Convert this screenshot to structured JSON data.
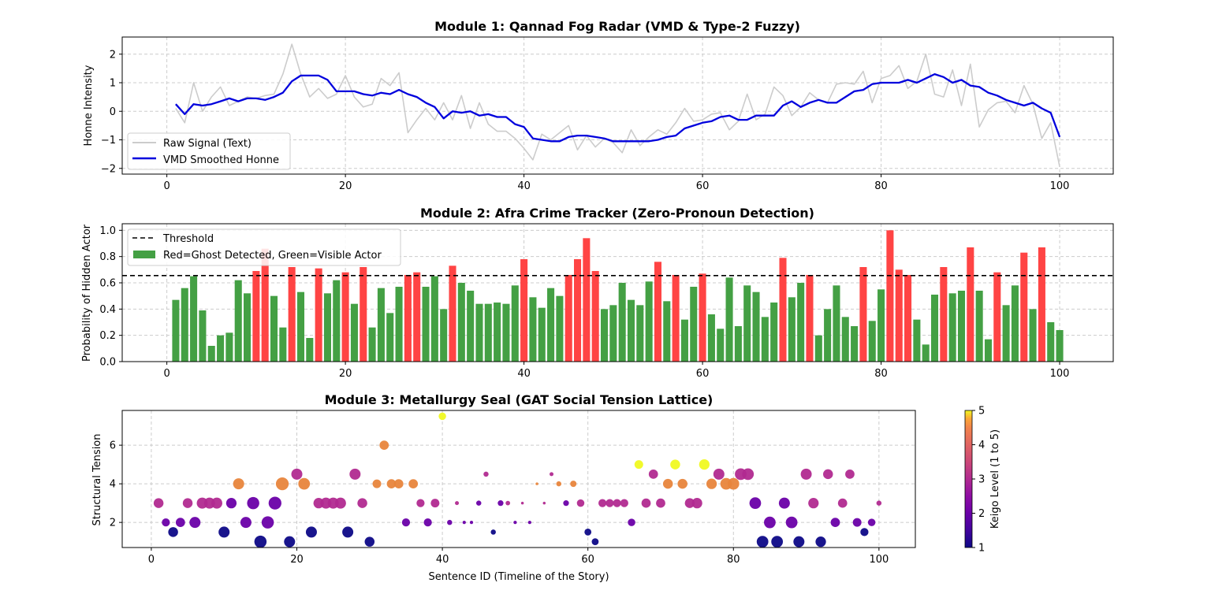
{
  "chart_data": [
    {
      "type": "line",
      "title": "Module 1: Qannad Fog Radar (VMD & Type-2 Fuzzy)",
      "xlabel": "",
      "ylabel": "Honne Intensity",
      "xlim": [
        -5,
        106
      ],
      "ylim": [
        -2.2,
        2.6
      ],
      "xticks": [
        0,
        20,
        40,
        60,
        80,
        100
      ],
      "yticks": [
        -2,
        -1,
        0,
        1,
        2
      ],
      "ytick_labels": [
        "−2",
        "−1",
        "0",
        "1",
        "2"
      ],
      "grid": true,
      "legend_position": "lower-left",
      "series": [
        {
          "name": "Raw Signal (Text)",
          "color": "#cccccc",
          "x": [
            1,
            2,
            3,
            4,
            5,
            6,
            7,
            8,
            9,
            10,
            11,
            12,
            13,
            14,
            15,
            16,
            17,
            18,
            19,
            20,
            21,
            22,
            23,
            24,
            25,
            26,
            27,
            28,
            29,
            30,
            31,
            32,
            33,
            34,
            35,
            36,
            37,
            38,
            39,
            40,
            41,
            42,
            43,
            44,
            45,
            46,
            47,
            48,
            49,
            50,
            51,
            52,
            53,
            54,
            55,
            56,
            57,
            58,
            59,
            60,
            61,
            62,
            63,
            64,
            65,
            66,
            67,
            68,
            69,
            70,
            71,
            72,
            73,
            74,
            75,
            76,
            77,
            78,
            79,
            80,
            81,
            82,
            83,
            84,
            85,
            86,
            87,
            88,
            89,
            90,
            91,
            92,
            93,
            94,
            95,
            96,
            97,
            98,
            99,
            100
          ],
          "y": [
            0.1,
            -0.4,
            1.0,
            0.0,
            0.5,
            0.85,
            0.2,
            0.35,
            0.5,
            0.45,
            0.55,
            0.6,
            1.3,
            2.35,
            1.3,
            0.5,
            0.8,
            0.45,
            0.6,
            1.25,
            0.5,
            0.15,
            0.25,
            1.15,
            0.9,
            1.35,
            -0.75,
            -0.3,
            0.1,
            -0.3,
            0.3,
            -0.3,
            0.55,
            -0.6,
            0.3,
            -0.45,
            -0.7,
            -0.7,
            -0.95,
            -1.3,
            -1.7,
            -0.8,
            -1.0,
            -0.75,
            -0.5,
            -1.35,
            -0.85,
            -1.25,
            -0.95,
            -1.1,
            -1.45,
            -0.65,
            -1.2,
            -0.9,
            -0.65,
            -0.8,
            -0.4,
            0.1,
            -0.35,
            -0.3,
            -0.1,
            -0.05,
            -0.65,
            -0.35,
            0.6,
            -0.3,
            -0.1,
            0.85,
            0.55,
            -0.15,
            0.15,
            0.65,
            0.4,
            0.3,
            0.95,
            1.0,
            0.95,
            1.4,
            0.3,
            1.15,
            1.25,
            1.6,
            0.8,
            1.05,
            2.0,
            0.6,
            0.5,
            1.45,
            0.2,
            1.65,
            -0.55,
            0.05,
            0.3,
            0.35,
            -0.05,
            0.9,
            0.25,
            -0.95,
            -0.4,
            -1.95
          ]
        },
        {
          "name": "VMD Smoothed Honne",
          "color": "#0000dd",
          "x": [
            1,
            2,
            3,
            4,
            5,
            6,
            7,
            8,
            9,
            10,
            11,
            12,
            13,
            14,
            15,
            16,
            17,
            18,
            19,
            20,
            21,
            22,
            23,
            24,
            25,
            26,
            27,
            28,
            29,
            30,
            31,
            32,
            33,
            34,
            35,
            36,
            37,
            38,
            39,
            40,
            41,
            42,
            43,
            44,
            45,
            46,
            47,
            48,
            49,
            50,
            51,
            52,
            53,
            54,
            55,
            56,
            57,
            58,
            59,
            60,
            61,
            62,
            63,
            64,
            65,
            66,
            67,
            68,
            69,
            70,
            71,
            72,
            73,
            74,
            75,
            76,
            77,
            78,
            79,
            80,
            81,
            82,
            83,
            84,
            85,
            86,
            87,
            88,
            89,
            90,
            91,
            92,
            93,
            94,
            95,
            96,
            97,
            98,
            99,
            100
          ],
          "y": [
            0.25,
            -0.1,
            0.25,
            0.2,
            0.25,
            0.35,
            0.45,
            0.35,
            0.45,
            0.45,
            0.4,
            0.5,
            0.65,
            1.05,
            1.25,
            1.25,
            1.25,
            1.1,
            0.7,
            0.7,
            0.7,
            0.6,
            0.55,
            0.65,
            0.6,
            0.75,
            0.6,
            0.5,
            0.3,
            0.15,
            -0.25,
            0.0,
            -0.05,
            0.0,
            -0.15,
            -0.1,
            -0.2,
            -0.2,
            -0.45,
            -0.55,
            -0.95,
            -1.0,
            -1.05,
            -1.05,
            -0.9,
            -0.85,
            -0.85,
            -0.9,
            -0.95,
            -1.05,
            -1.05,
            -1.05,
            -1.05,
            -1.05,
            -1.0,
            -0.9,
            -0.85,
            -0.6,
            -0.5,
            -0.4,
            -0.35,
            -0.2,
            -0.15,
            -0.3,
            -0.3,
            -0.15,
            -0.15,
            -0.15,
            0.2,
            0.35,
            0.15,
            0.3,
            0.4,
            0.3,
            0.3,
            0.5,
            0.7,
            0.75,
            0.95,
            1.0,
            1.0,
            1.0,
            1.1,
            1.0,
            1.15,
            1.3,
            1.2,
            1.0,
            1.1,
            0.9,
            0.85,
            0.65,
            0.55,
            0.4,
            0.3,
            0.2,
            0.3,
            0.1,
            -0.05,
            -0.9
          ]
        }
      ]
    },
    {
      "type": "bar",
      "title": "Module 2: Afra Crime Tracker (Zero-Pronoun Detection)",
      "xlabel": "",
      "ylabel": "Probability of Hidden Actor",
      "xlim": [
        -5,
        106
      ],
      "ylim": [
        0,
        1.05
      ],
      "xticks": [
        0,
        20,
        40,
        60,
        80,
        100
      ],
      "yticks": [
        0,
        0.2,
        0.4,
        0.6,
        0.8,
        1.0
      ],
      "ytick_labels": [
        "0.0",
        "0.2",
        "0.4",
        "0.6",
        "0.8",
        "1.0"
      ],
      "grid": true,
      "legend_position": "top-left",
      "threshold": {
        "label": "Threshold",
        "value": 0.655
      },
      "bar_legend_label": "Red=Ghost Detected, Green=Visible Actor",
      "color_above": "#ff4444",
      "color_below": "#44a044",
      "x": [
        1,
        2,
        3,
        4,
        5,
        6,
        7,
        8,
        9,
        10,
        11,
        12,
        13,
        14,
        15,
        16,
        17,
        18,
        19,
        20,
        21,
        22,
        23,
        24,
        25,
        26,
        27,
        28,
        29,
        30,
        31,
        32,
        33,
        34,
        35,
        36,
        37,
        38,
        39,
        40,
        41,
        42,
        43,
        44,
        45,
        46,
        47,
        48,
        49,
        50,
        51,
        52,
        53,
        54,
        55,
        56,
        57,
        58,
        59,
        60,
        61,
        62,
        63,
        64,
        65,
        66,
        67,
        68,
        69,
        70,
        71,
        72,
        73,
        74,
        75,
        76,
        77,
        78,
        79,
        80,
        81,
        82,
        83,
        84,
        85,
        86,
        87,
        88,
        89,
        90,
        91,
        92,
        93,
        94,
        95,
        96,
        97,
        98,
        99,
        100
      ],
      "values": [
        0.47,
        0.56,
        0.65,
        0.39,
        0.12,
        0.2,
        0.22,
        0.62,
        0.52,
        0.69,
        0.86,
        0.5,
        0.26,
        0.72,
        0.53,
        0.18,
        0.71,
        0.52,
        0.62,
        0.68,
        0.44,
        0.72,
        0.26,
        0.56,
        0.37,
        0.57,
        0.66,
        0.68,
        0.57,
        0.65,
        0.4,
        0.73,
        0.6,
        0.54,
        0.44,
        0.44,
        0.45,
        0.44,
        0.58,
        0.78,
        0.49,
        0.41,
        0.56,
        0.5,
        0.66,
        0.78,
        0.94,
        0.69,
        0.4,
        0.43,
        0.6,
        0.47,
        0.43,
        0.61,
        0.76,
        0.46,
        0.66,
        0.32,
        0.57,
        0.67,
        0.36,
        0.25,
        0.64,
        0.27,
        0.58,
        0.53,
        0.34,
        0.45,
        0.79,
        0.49,
        0.6,
        0.66,
        0.2,
        0.4,
        0.58,
        0.34,
        0.27,
        0.72,
        0.31,
        0.55,
        1.0,
        0.7,
        0.66,
        0.32,
        0.13,
        0.51,
        0.72,
        0.52,
        0.54,
        0.87,
        0.54,
        0.17,
        0.68,
        0.43,
        0.58,
        0.83,
        0.4,
        0.87,
        0.3,
        0.24
      ]
    },
    {
      "type": "scatter",
      "title": "Module 3: Metallurgy Seal (GAT Social Tension Lattice)",
      "xlabel": "Sentence ID (Timeline of the Story)",
      "ylabel": "Structural Tension",
      "xlim": [
        -4,
        105
      ],
      "ylim": [
        0.7,
        7.8
      ],
      "xticks": [
        0,
        20,
        40,
        60,
        80,
        100
      ],
      "yticks": [
        2,
        4,
        6
      ],
      "grid": true,
      "colorbar": {
        "label": "Keigo Level (1 to 5)",
        "min": 1,
        "max": 5,
        "ticks": [
          1,
          2,
          3,
          4,
          5
        ]
      },
      "points": [
        [
          1,
          3,
          3,
          0.7
        ],
        [
          2,
          2,
          2,
          0.55
        ],
        [
          3,
          1.5,
          1,
          0.7
        ],
        [
          4,
          2,
          2,
          0.65
        ],
        [
          5,
          3,
          3,
          0.7
        ],
        [
          6,
          2,
          2,
          0.8
        ],
        [
          7,
          3,
          3,
          0.8
        ],
        [
          8,
          3,
          3,
          0.8
        ],
        [
          9,
          3,
          3,
          0.8
        ],
        [
          10,
          1.5,
          1,
          0.8
        ],
        [
          11,
          3,
          2,
          0.75
        ],
        [
          12,
          4,
          4,
          0.8
        ],
        [
          13,
          2,
          2,
          0.8
        ],
        [
          14,
          3,
          2,
          0.9
        ],
        [
          15,
          1,
          1,
          0.9
        ],
        [
          16,
          2,
          2,
          0.9
        ],
        [
          17,
          3,
          2,
          0.95
        ],
        [
          18,
          4,
          4,
          0.95
        ],
        [
          19,
          1,
          1,
          0.8
        ],
        [
          20,
          4.5,
          3,
          0.8
        ],
        [
          21,
          4,
          4,
          0.85
        ],
        [
          22,
          1.5,
          1,
          0.8
        ],
        [
          23,
          3,
          3,
          0.75
        ],
        [
          24,
          3,
          3,
          0.8
        ],
        [
          25,
          3,
          3,
          0.8
        ],
        [
          26,
          3,
          3,
          0.8
        ],
        [
          27,
          1.5,
          1,
          0.8
        ],
        [
          28,
          4.5,
          3,
          0.8
        ],
        [
          29,
          3,
          3,
          0.7
        ],
        [
          30,
          1,
          1,
          0.7
        ],
        [
          31,
          4,
          4,
          0.6
        ],
        [
          32,
          6,
          4,
          0.65
        ],
        [
          33,
          4,
          4,
          0.65
        ],
        [
          34,
          4,
          4,
          0.65
        ],
        [
          35,
          2,
          2,
          0.55
        ],
        [
          36,
          4,
          4,
          0.65
        ],
        [
          37,
          3,
          3,
          0.55
        ],
        [
          38,
          2,
          2,
          0.55
        ],
        [
          39,
          3,
          3,
          0.6
        ],
        [
          40,
          7.5,
          5,
          0.5
        ],
        [
          41,
          2,
          2,
          0.3
        ],
        [
          42,
          3,
          3,
          0.2
        ],
        [
          43,
          2,
          2,
          0.15
        ],
        [
          44,
          2,
          2,
          0.15
        ],
        [
          45,
          3,
          2,
          0.3
        ],
        [
          46,
          4.5,
          3,
          0.3
        ],
        [
          47,
          1.5,
          1,
          0.3
        ],
        [
          48,
          3,
          2,
          0.35
        ],
        [
          49,
          3,
          3,
          0.25
        ],
        [
          50,
          2,
          2,
          0.15
        ],
        [
          51,
          3,
          3,
          0.1
        ],
        [
          52,
          2,
          2,
          0.15
        ],
        [
          53,
          4,
          4,
          0.1
        ],
        [
          54,
          3,
          3,
          0.1
        ],
        [
          55,
          4.5,
          3,
          0.2
        ],
        [
          56,
          4,
          4,
          0.3
        ],
        [
          57,
          3,
          2,
          0.35
        ],
        [
          58,
          4,
          4,
          0.4
        ],
        [
          59,
          3,
          3,
          0.5
        ],
        [
          60,
          1.5,
          1,
          0.45
        ],
        [
          61,
          1,
          1,
          0.45
        ],
        [
          62,
          3,
          3,
          0.55
        ],
        [
          63,
          3,
          3,
          0.55
        ],
        [
          64,
          3,
          3,
          0.55
        ],
        [
          65,
          3,
          3,
          0.55
        ],
        [
          66,
          2,
          2,
          0.5
        ],
        [
          67,
          5,
          5,
          0.6
        ],
        [
          68,
          3,
          3,
          0.65
        ],
        [
          69,
          4.5,
          3,
          0.65
        ],
        [
          70,
          3,
          3,
          0.65
        ],
        [
          71,
          4,
          4,
          0.7
        ],
        [
          72,
          5,
          5,
          0.7
        ],
        [
          73,
          4,
          4,
          0.7
        ],
        [
          74,
          3,
          3,
          0.7
        ],
        [
          75,
          3,
          3,
          0.75
        ],
        [
          76,
          5,
          5,
          0.75
        ],
        [
          77,
          4,
          4,
          0.75
        ],
        [
          78,
          4.5,
          3,
          0.8
        ],
        [
          79,
          4,
          4,
          0.85
        ],
        [
          80,
          4,
          4,
          0.85
        ],
        [
          81,
          4.5,
          3,
          0.85
        ],
        [
          82,
          4.5,
          3,
          0.85
        ],
        [
          83,
          3,
          2,
          0.85
        ],
        [
          84,
          1,
          1,
          0.85
        ],
        [
          85,
          2,
          2,
          0.85
        ],
        [
          86,
          1,
          1,
          0.85
        ],
        [
          87,
          3,
          2,
          0.8
        ],
        [
          88,
          2,
          2,
          0.85
        ],
        [
          89,
          1,
          1,
          0.8
        ],
        [
          90,
          4.5,
          3,
          0.8
        ],
        [
          91,
          3,
          3,
          0.75
        ],
        [
          92,
          1,
          1,
          0.75
        ],
        [
          93,
          4.5,
          3,
          0.7
        ],
        [
          94,
          2,
          2,
          0.65
        ],
        [
          95,
          3,
          3,
          0.65
        ],
        [
          96,
          4.5,
          3,
          0.65
        ],
        [
          97,
          2,
          2,
          0.6
        ],
        [
          98,
          1.5,
          1,
          0.55
        ],
        [
          99,
          2,
          2,
          0.5
        ],
        [
          100,
          3,
          3,
          0.3
        ]
      ]
    }
  ]
}
